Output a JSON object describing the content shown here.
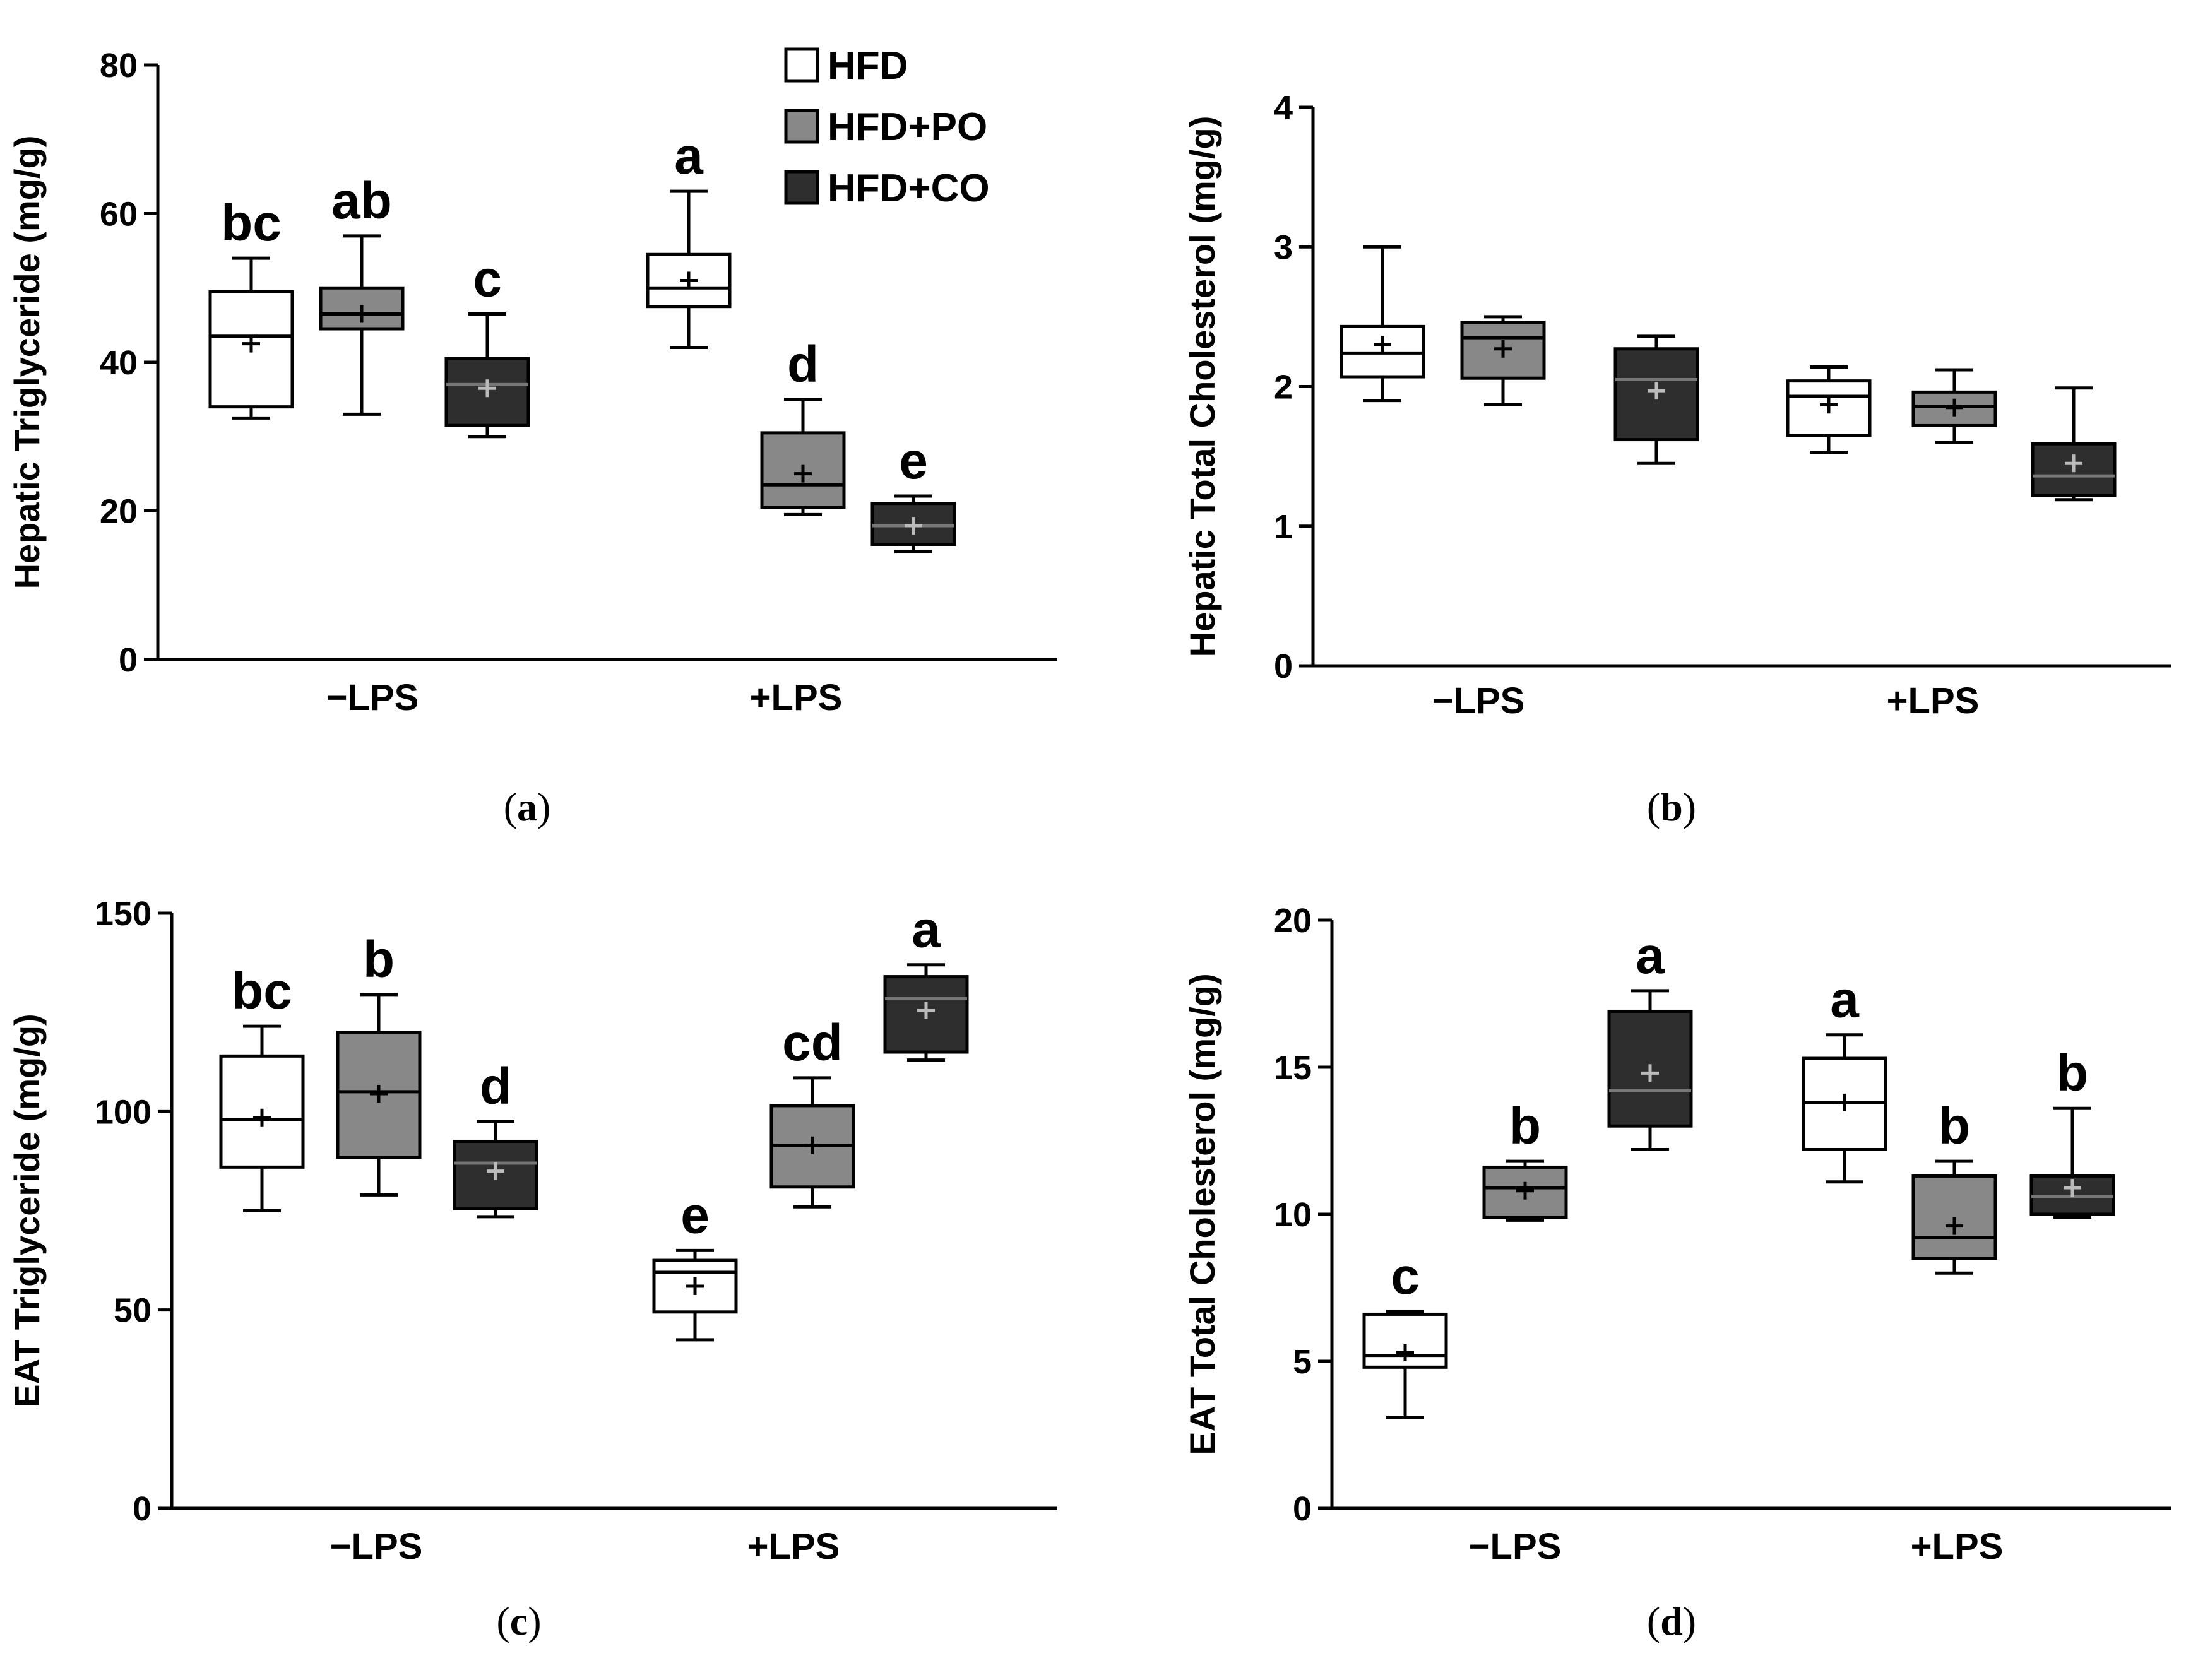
{
  "legend": {
    "items": [
      {
        "label": "HFD",
        "color": "#ffffff"
      },
      {
        "label": "HFD+PO",
        "color": "#888888"
      },
      {
        "label": "HFD+CO",
        "color": "#2e2e2e"
      }
    ]
  },
  "chart_data": [
    {
      "type": "box",
      "panel": "(a)",
      "panel_letter": "a",
      "ylabel": "Hepatic Triglyceride  (mg/g)",
      "ylim": [
        0,
        80
      ],
      "yticks": [
        0,
        20,
        40,
        60,
        80
      ],
      "groups": [
        "−LPS",
        "+LPS"
      ],
      "series_names": [
        "HFD",
        "HFD+PO",
        "HFD+CO"
      ],
      "boxes": [
        {
          "group": "−LPS",
          "series": "HFD",
          "min": 32.5,
          "q1": 34,
          "median": 43.5,
          "q3": 49.5,
          "max": 54,
          "mean": 42.5,
          "letter": "bc"
        },
        {
          "group": "−LPS",
          "series": "HFD+PO",
          "min": 33,
          "q1": 44.5,
          "median": 46.5,
          "q3": 50,
          "max": 57,
          "mean": 46.5,
          "letter": "ab"
        },
        {
          "group": "−LPS",
          "series": "HFD+CO",
          "min": 30,
          "q1": 31.5,
          "median": 37,
          "q3": 40.5,
          "max": 46.5,
          "mean": 36.5,
          "letter": "c"
        },
        {
          "group": "+LPS",
          "series": "HFD",
          "min": 42,
          "q1": 47.5,
          "median": 50,
          "q3": 54.5,
          "max": 63,
          "mean": 51,
          "letter": "a"
        },
        {
          "group": "+LPS",
          "series": "HFD+PO",
          "min": 19.5,
          "q1": 20.5,
          "median": 23.5,
          "q3": 30.5,
          "max": 35,
          "mean": 25,
          "letter": "d"
        },
        {
          "group": "+LPS",
          "series": "HFD+CO",
          "min": 14.5,
          "q1": 15.5,
          "median": 18,
          "q3": 21,
          "max": 22,
          "mean": 18,
          "letter": "e"
        }
      ]
    },
    {
      "type": "box",
      "panel": "(b)",
      "panel_letter": "b",
      "ylabel": "Hepatic Total Cholesterol  (mg/g)",
      "ylim": [
        0,
        4
      ],
      "yticks": [
        0,
        1,
        2,
        3,
        4
      ],
      "groups": [
        "−LPS",
        "+LPS"
      ],
      "series_names": [
        "HFD",
        "HFD+PO",
        "HFD+CO"
      ],
      "boxes": [
        {
          "group": "−LPS",
          "series": "HFD",
          "min": 1.9,
          "q1": 2.07,
          "median": 2.24,
          "q3": 2.43,
          "max": 3.0,
          "mean": 2.3,
          "letter": ""
        },
        {
          "group": "−LPS",
          "series": "HFD+PO",
          "min": 1.87,
          "q1": 2.06,
          "median": 2.35,
          "q3": 2.46,
          "max": 2.5,
          "mean": 2.27,
          "letter": ""
        },
        {
          "group": "−LPS",
          "series": "HFD+CO",
          "min": 1.45,
          "q1": 1.62,
          "median": 2.05,
          "q3": 2.27,
          "max": 2.36,
          "mean": 1.97,
          "letter": ""
        },
        {
          "group": "+LPS",
          "series": "HFD",
          "min": 1.53,
          "q1": 1.65,
          "median": 1.93,
          "q3": 2.04,
          "max": 2.14,
          "mean": 1.87,
          "letter": ""
        },
        {
          "group": "+LPS",
          "series": "HFD+PO",
          "min": 1.6,
          "q1": 1.72,
          "median": 1.86,
          "q3": 1.96,
          "max": 2.12,
          "mean": 1.85,
          "letter": ""
        },
        {
          "group": "+LPS",
          "series": "HFD+CO",
          "min": 1.19,
          "q1": 1.22,
          "median": 1.36,
          "q3": 1.59,
          "max": 1.99,
          "mean": 1.45,
          "letter": ""
        }
      ]
    },
    {
      "type": "box",
      "panel": "(c)",
      "panel_letter": "c",
      "ylabel": "EAT Triglyceride  (mg/g)",
      "ylim": [
        0,
        150
      ],
      "yticks": [
        0,
        50,
        100,
        150
      ],
      "groups": [
        "−LPS",
        "+LPS"
      ],
      "series_names": [
        "HFD",
        "HFD+PO",
        "HFD+CO"
      ],
      "boxes": [
        {
          "group": "−LPS",
          "series": "HFD",
          "min": 75,
          "q1": 86,
          "median": 98,
          "q3": 114,
          "max": 121.5,
          "mean": 98.5,
          "letter": "bc"
        },
        {
          "group": "−LPS",
          "series": "HFD+PO",
          "min": 79,
          "q1": 88.5,
          "median": 105,
          "q3": 120,
          "max": 129.5,
          "mean": 104.5,
          "letter": "b"
        },
        {
          "group": "−LPS",
          "series": "HFD+CO",
          "min": 73.5,
          "q1": 75.5,
          "median": 87,
          "q3": 92.5,
          "max": 97.5,
          "mean": 85,
          "letter": "d"
        },
        {
          "group": "+LPS",
          "series": "HFD",
          "min": 42.5,
          "q1": 49.5,
          "median": 59.5,
          "q3": 62.5,
          "max": 65,
          "mean": 56,
          "letter": "e"
        },
        {
          "group": "+LPS",
          "series": "HFD+PO",
          "min": 76,
          "q1": 81,
          "median": 91.5,
          "q3": 101.5,
          "max": 108.5,
          "mean": 91.5,
          "letter": "cd"
        },
        {
          "group": "+LPS",
          "series": "HFD+CO",
          "min": 113,
          "q1": 115,
          "median": 128.5,
          "q3": 134,
          "max": 137,
          "mean": 125.5,
          "letter": "a"
        }
      ]
    },
    {
      "type": "box",
      "panel": "(d)",
      "panel_letter": "d",
      "ylabel": "EAT Total Cholesterol  (mg/g)",
      "ylim": [
        0,
        20
      ],
      "yticks": [
        0,
        5,
        10,
        15,
        20
      ],
      "groups": [
        "−LPS",
        "+LPS"
      ],
      "series_names": [
        "HFD",
        "HFD+PO",
        "HFD+CO"
      ],
      "boxes": [
        {
          "group": "−LPS",
          "series": "HFD",
          "min": 3.1,
          "q1": 4.8,
          "median": 5.2,
          "q3": 6.6,
          "max": 6.7,
          "mean": 5.3,
          "letter": "c"
        },
        {
          "group": "−LPS",
          "series": "HFD+PO",
          "min": 9.8,
          "q1": 9.9,
          "median": 10.9,
          "q3": 11.6,
          "max": 11.8,
          "mean": 10.8,
          "letter": "b"
        },
        {
          "group": "−LPS",
          "series": "HFD+CO",
          "min": 12.2,
          "q1": 13.0,
          "median": 14.2,
          "q3": 16.9,
          "max": 17.6,
          "mean": 14.8,
          "letter": "a"
        },
        {
          "group": "+LPS",
          "series": "HFD",
          "min": 11.1,
          "q1": 12.2,
          "median": 13.8,
          "q3": 15.3,
          "max": 16.1,
          "mean": 13.8,
          "letter": "a"
        },
        {
          "group": "+LPS",
          "series": "HFD+PO",
          "min": 8.0,
          "q1": 8.5,
          "median": 9.2,
          "q3": 11.3,
          "max": 11.8,
          "mean": 9.6,
          "letter": "b"
        },
        {
          "group": "+LPS",
          "series": "HFD+CO",
          "min": 9.9,
          "q1": 10.0,
          "median": 10.6,
          "q3": 11.3,
          "max": 13.6,
          "mean": 10.9,
          "letter": "b"
        }
      ]
    }
  ]
}
